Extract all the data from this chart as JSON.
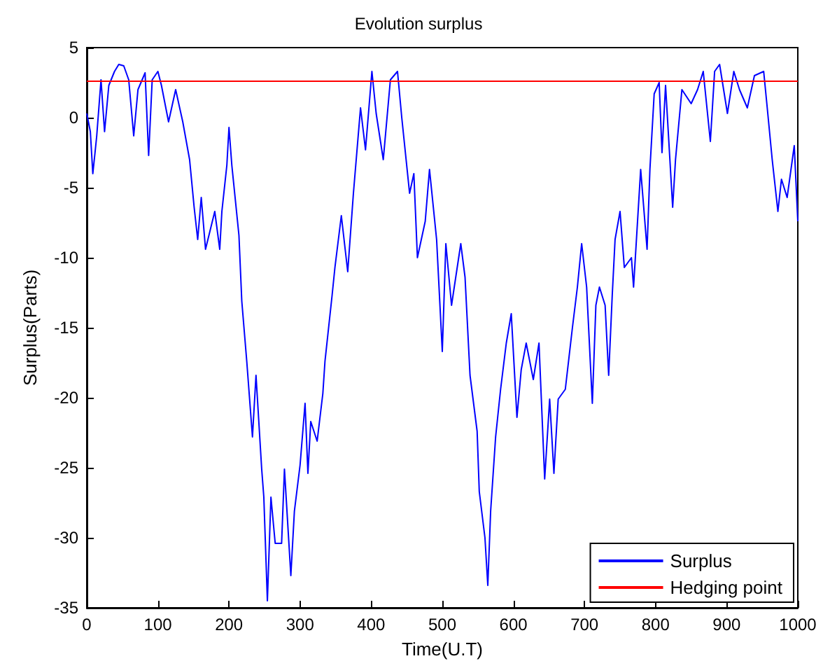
{
  "chart_data": {
    "type": "line",
    "title": "Evolution surplus",
    "xlabel": "Time(U.T)",
    "ylabel": "Surplus(Parts)",
    "xlim": [
      0,
      1000
    ],
    "xticks": [
      0,
      100,
      200,
      300,
      400,
      500,
      600,
      700,
      800,
      900,
      1000
    ],
    "ylim": [
      -35,
      5
    ],
    "yticks": [
      -35,
      -30,
      -25,
      -20,
      -15,
      -10,
      -5,
      0,
      5
    ],
    "grid": false,
    "legend": "bottom right",
    "marker": "none",
    "line_style": "solid",
    "series": [
      {
        "name": "Surplus",
        "color": "#0000ff",
        "x": [
          0,
          5,
          8.5,
          12,
          14,
          20,
          25,
          31,
          39,
          45,
          52,
          59,
          66,
          72,
          82,
          87,
          92,
          100,
          105,
          115,
          125,
          135,
          144.6,
          151,
          156,
          161,
          167,
          180,
          187,
          190,
          197,
          200,
          204,
          214,
          218,
          225,
          233,
          238,
          246,
          249,
          254,
          259,
          265,
          274,
          278,
          287,
          292,
          300,
          307,
          311,
          315,
          324,
          332,
          335,
          345,
          349,
          358,
          367,
          375,
          385,
          392,
          401,
          407,
          417,
          427,
          437,
          443,
          454,
          460,
          465,
          476,
          482,
          492,
          500,
          505,
          513,
          526,
          532,
          539,
          549,
          552,
          560,
          564,
          568,
          575,
          582,
          590,
          597,
          605,
          611,
          618,
          628,
          636,
          644,
          651,
          657,
          663,
          673,
          683,
          690,
          696,
          703,
          711,
          716,
          721,
          729,
          734,
          739,
          743,
          750,
          756,
          766,
          769,
          779,
          788,
          792,
          798,
          805,
          809,
          814,
          824,
          828,
          837,
          850,
          859,
          867,
          877,
          883,
          890,
          901,
          910,
          918,
          929,
          939,
          952,
          957,
          964,
          972,
          977,
          985,
          995,
          1000
        ],
        "values": [
          0.3,
          -1.0,
          -4.0,
          -2.3,
          -1.3,
          2.7,
          -1.0,
          2.3,
          3.3,
          3.8,
          3.7,
          2.7,
          -1.3,
          2.0,
          3.2,
          -2.7,
          2.7,
          3.3,
          2.3,
          -0.3,
          2.0,
          -0.3,
          -3.0,
          -6.4,
          -8.7,
          -5.7,
          -9.4,
          -6.7,
          -9.4,
          -6.7,
          -3.4,
          -0.7,
          -3.4,
          -8.4,
          -13.1,
          -17.4,
          -22.8,
          -18.4,
          -25.1,
          -27.1,
          -34.5,
          -27.1,
          -30.4,
          -30.4,
          -25.1,
          -32.7,
          -28.1,
          -24.8,
          -20.4,
          -25.4,
          -21.7,
          -23.1,
          -19.7,
          -17.4,
          -12.7,
          -10.7,
          -7.0,
          -11.0,
          -5.4,
          0.7,
          -2.3,
          3.3,
          0.3,
          -3.0,
          2.7,
          3.3,
          0,
          -5.4,
          -4.0,
          -10.0,
          -7.4,
          -3.7,
          -8.7,
          -16.7,
          -9.0,
          -13.4,
          -9.0,
          -11.4,
          -18.4,
          -22.4,
          -26.7,
          -30.0,
          -33.4,
          -28.1,
          -22.8,
          -19.4,
          -16.1,
          -14.0,
          -21.4,
          -18.0,
          -16.1,
          -18.7,
          -16.1,
          -25.8,
          -20.1,
          -25.4,
          -20.1,
          -19.4,
          -15.0,
          -12.1,
          -9.0,
          -12.1,
          -20.4,
          -13.4,
          -12.1,
          -13.4,
          -18.4,
          -12.7,
          -8.7,
          -6.7,
          -10.7,
          -10.0,
          -12.1,
          -3.7,
          -9.4,
          -3.7,
          1.7,
          2.5,
          -2.5,
          2.3,
          -6.4,
          -3.0,
          2.0,
          1.0,
          2.0,
          3.3,
          -1.7,
          3.3,
          3.8,
          0.3,
          3.3,
          2.0,
          0.7,
          3.0,
          3.3,
          0.7,
          -3.0,
          -6.7,
          -4.4,
          -5.7,
          -2.0,
          -7.4
        ]
      },
      {
        "name": "Hedging point",
        "color": "#ff0000",
        "x": [
          0,
          1000
        ],
        "values": [
          2.6,
          2.6
        ]
      }
    ]
  }
}
